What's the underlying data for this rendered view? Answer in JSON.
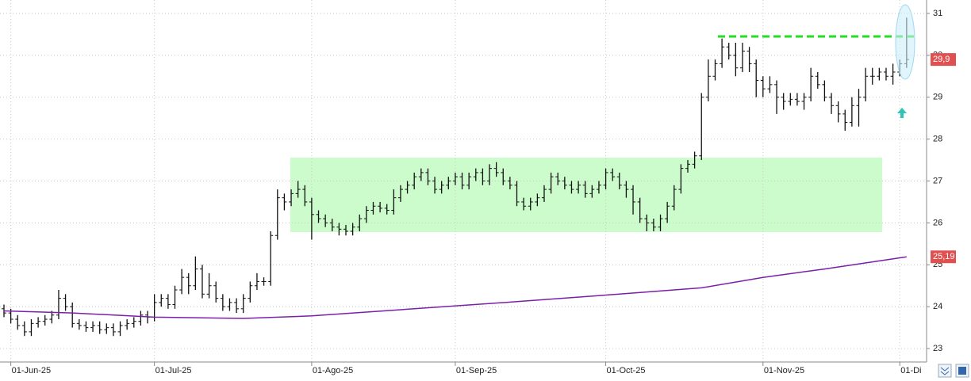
{
  "chart_data": {
    "type": "ohlc",
    "categories": [
      null,
      "01-Jun-25",
      null,
      null,
      null,
      null,
      null,
      null,
      null,
      null,
      null,
      null,
      null,
      null,
      null,
      null,
      null,
      null,
      null,
      null,
      null,
      null,
      "01-Jul-25",
      null,
      null,
      null,
      null,
      null,
      null,
      null,
      null,
      null,
      null,
      null,
      null,
      null,
      null,
      null,
      null,
      null,
      null,
      null,
      null,
      null,
      null,
      "01-Ago-25",
      null,
      null,
      null,
      null,
      null,
      null,
      null,
      null,
      null,
      null,
      null,
      null,
      null,
      null,
      null,
      null,
      null,
      null,
      null,
      null,
      "01-Sep-25",
      null,
      null,
      null,
      null,
      null,
      null,
      null,
      null,
      null,
      null,
      null,
      null,
      null,
      null,
      null,
      null,
      null,
      null,
      null,
      null,
      null,
      "01-Oct-25",
      null,
      null,
      null,
      null,
      null,
      null,
      null,
      null,
      null,
      null,
      null,
      null,
      null,
      null,
      null,
      null,
      null,
      null,
      null,
      null,
      null,
      null,
      "01-Nov-25",
      null,
      null,
      null,
      null,
      null,
      null,
      null,
      null,
      null,
      null,
      null,
      null,
      null,
      null,
      null,
      null,
      null,
      null,
      null,
      "01-Di",
      null
    ],
    "open": [
      23.95,
      23.85,
      23.7,
      23.55,
      23.4,
      23.6,
      23.65,
      23.7,
      23.8,
      24.2,
      24.0,
      23.6,
      23.55,
      23.5,
      23.55,
      23.45,
      23.5,
      23.4,
      23.55,
      23.6,
      23.65,
      23.8,
      23.75,
      24.1,
      24.2,
      24.05,
      24.4,
      24.7,
      24.5,
      24.9,
      24.3,
      24.5,
      24.2,
      24.0,
      24.1,
      23.95,
      24.2,
      24.5,
      24.6,
      24.6,
      25.7,
      26.6,
      26.5,
      26.7,
      26.8,
      26.5,
      26.2,
      26.1,
      26.0,
      25.9,
      25.85,
      25.8,
      25.9,
      26.1,
      26.3,
      26.4,
      26.35,
      26.3,
      26.6,
      26.8,
      26.9,
      27.1,
      27.2,
      27.0,
      26.8,
      26.9,
      27.0,
      27.1,
      26.9,
      27.1,
      27.2,
      27.0,
      27.3,
      27.2,
      27.0,
      26.9,
      26.5,
      26.4,
      26.5,
      26.6,
      26.8,
      27.1,
      27.0,
      26.9,
      26.8,
      26.9,
      26.7,
      26.8,
      26.9,
      27.2,
      27.1,
      26.9,
      26.8,
      26.5,
      26.1,
      26.0,
      25.9,
      26.1,
      26.4,
      26.8,
      27.3,
      27.4,
      27.6,
      29.0,
      29.5,
      29.8,
      30.2,
      30.0,
      29.7,
      30.1,
      29.8,
      29.4,
      29.2,
      29.3,
      29.0,
      28.9,
      28.95,
      28.9,
      29.0,
      29.5,
      29.3,
      29.0,
      28.8,
      28.6,
      28.4,
      28.8,
      29.0,
      29.5,
      29.5,
      29.6,
      29.5,
      29.6,
      29.8
    ],
    "high": [
      24.05,
      23.95,
      23.8,
      23.65,
      23.7,
      23.75,
      23.8,
      23.9,
      24.4,
      24.3,
      24.1,
      23.7,
      23.65,
      23.65,
      23.65,
      23.6,
      23.6,
      23.65,
      23.7,
      23.75,
      23.9,
      23.9,
      24.3,
      24.3,
      24.3,
      24.5,
      24.9,
      24.8,
      25.2,
      25.0,
      24.8,
      24.6,
      24.3,
      24.2,
      24.2,
      24.3,
      24.6,
      24.8,
      24.7,
      25.8,
      26.8,
      26.7,
      26.8,
      27.0,
      26.9,
      26.6,
      26.3,
      26.2,
      26.1,
      26.0,
      25.95,
      26.0,
      26.2,
      26.4,
      26.5,
      26.5,
      26.45,
      26.8,
      26.9,
      27.0,
      27.2,
      27.3,
      27.3,
      27.1,
      27.0,
      27.1,
      27.2,
      27.2,
      27.2,
      27.3,
      27.3,
      27.4,
      27.45,
      27.3,
      27.1,
      27.0,
      26.6,
      26.6,
      26.7,
      26.9,
      27.2,
      27.2,
      27.1,
      27.0,
      27.0,
      27.0,
      26.9,
      27.0,
      27.3,
      27.3,
      27.2,
      27.0,
      26.9,
      26.6,
      26.2,
      26.1,
      26.2,
      26.5,
      26.9,
      27.4,
      27.5,
      27.7,
      29.1,
      29.9,
      29.9,
      30.4,
      30.3,
      30.3,
      30.3,
      30.2,
      29.9,
      29.5,
      29.5,
      29.4,
      29.1,
      29.1,
      29.1,
      29.1,
      29.7,
      29.6,
      29.4,
      29.1,
      28.9,
      28.7,
      29.0,
      29.2,
      29.7,
      29.7,
      29.7,
      29.7,
      29.8,
      29.9,
      30.9
    ],
    "low": [
      23.75,
      23.6,
      23.45,
      23.3,
      23.3,
      23.5,
      23.55,
      23.6,
      23.7,
      23.9,
      23.5,
      23.45,
      23.4,
      23.4,
      23.35,
      23.35,
      23.3,
      23.3,
      23.45,
      23.5,
      23.55,
      23.6,
      23.65,
      24.0,
      23.95,
      23.95,
      24.3,
      24.3,
      24.4,
      24.2,
      24.2,
      24.1,
      23.9,
      23.9,
      23.85,
      23.85,
      24.1,
      24.4,
      24.5,
      24.5,
      25.6,
      26.3,
      26.4,
      26.6,
      26.4,
      25.6,
      26.0,
      25.9,
      25.8,
      25.7,
      25.7,
      25.7,
      25.8,
      26.0,
      26.2,
      26.25,
      26.2,
      26.2,
      26.5,
      26.7,
      26.8,
      27.0,
      26.9,
      26.7,
      26.7,
      26.8,
      26.9,
      26.8,
      26.8,
      27.0,
      26.9,
      26.9,
      27.1,
      26.9,
      26.8,
      26.4,
      26.3,
      26.3,
      26.4,
      26.5,
      26.7,
      26.9,
      26.8,
      26.7,
      26.7,
      26.6,
      26.6,
      26.7,
      26.8,
      27.0,
      26.8,
      26.6,
      26.2,
      26.0,
      25.8,
      25.8,
      25.8,
      26.0,
      26.3,
      26.7,
      27.2,
      27.3,
      27.5,
      28.9,
      29.4,
      29.7,
      29.9,
      29.5,
      29.6,
      29.6,
      29.0,
      29.0,
      29.1,
      28.6,
      28.7,
      28.8,
      28.8,
      28.7,
      28.9,
      29.2,
      28.9,
      28.6,
      28.4,
      28.2,
      28.3,
      28.3,
      28.9,
      29.3,
      29.4,
      29.4,
      29.3,
      29.5,
      29.7
    ],
    "close": [
      23.85,
      23.7,
      23.55,
      23.4,
      23.6,
      23.65,
      23.7,
      23.8,
      24.2,
      24.0,
      23.6,
      23.55,
      23.5,
      23.55,
      23.45,
      23.5,
      23.4,
      23.55,
      23.6,
      23.65,
      23.8,
      23.75,
      24.1,
      24.2,
      24.05,
      24.4,
      24.7,
      24.5,
      24.9,
      24.3,
      24.5,
      24.2,
      24.0,
      24.1,
      23.95,
      24.2,
      24.5,
      24.6,
      24.6,
      25.7,
      26.6,
      26.5,
      26.7,
      26.8,
      26.5,
      26.2,
      26.1,
      26.0,
      25.9,
      25.85,
      25.8,
      25.9,
      26.1,
      26.3,
      26.4,
      26.35,
      26.3,
      26.6,
      26.8,
      26.9,
      27.1,
      27.2,
      27.0,
      26.8,
      26.9,
      27.0,
      27.1,
      26.9,
      27.1,
      27.2,
      27.0,
      27.3,
      27.2,
      27.0,
      26.9,
      26.5,
      26.4,
      26.5,
      26.6,
      26.8,
      27.1,
      27.0,
      26.9,
      26.8,
      26.9,
      26.7,
      26.8,
      26.9,
      27.2,
      27.1,
      26.9,
      26.8,
      26.5,
      26.1,
      26.0,
      25.9,
      26.1,
      26.4,
      26.8,
      27.3,
      27.4,
      27.6,
      29.0,
      29.5,
      29.8,
      30.2,
      30.0,
      29.7,
      30.1,
      29.8,
      29.4,
      29.2,
      29.3,
      29.0,
      28.9,
      28.95,
      28.9,
      29.0,
      29.5,
      29.3,
      29.0,
      28.8,
      28.6,
      28.4,
      28.8,
      29.0,
      29.5,
      29.5,
      29.6,
      29.5,
      29.6,
      29.8,
      29.9
    ],
    "color": "#111111",
    "moving_average": {
      "color": "#7a1fa8",
      "x": [
        0,
        10,
        22,
        35,
        45,
        60,
        75,
        90,
        102,
        111,
        120,
        132
      ],
      "values": [
        23.9,
        23.85,
        23.75,
        23.72,
        23.78,
        23.95,
        24.12,
        24.3,
        24.45,
        24.7,
        24.9,
        25.19
      ]
    },
    "price_tags": [
      {
        "value": 29.9,
        "label": "29,9"
      },
      {
        "value": 25.19,
        "label": "25,19"
      }
    ],
    "tag_color": "#e05050",
    "ylim": [
      22.68,
      31.32
    ],
    "yticks": [
      23,
      24,
      25,
      26,
      27,
      28,
      29,
      30,
      31
    ],
    "grid": true
  }
}
